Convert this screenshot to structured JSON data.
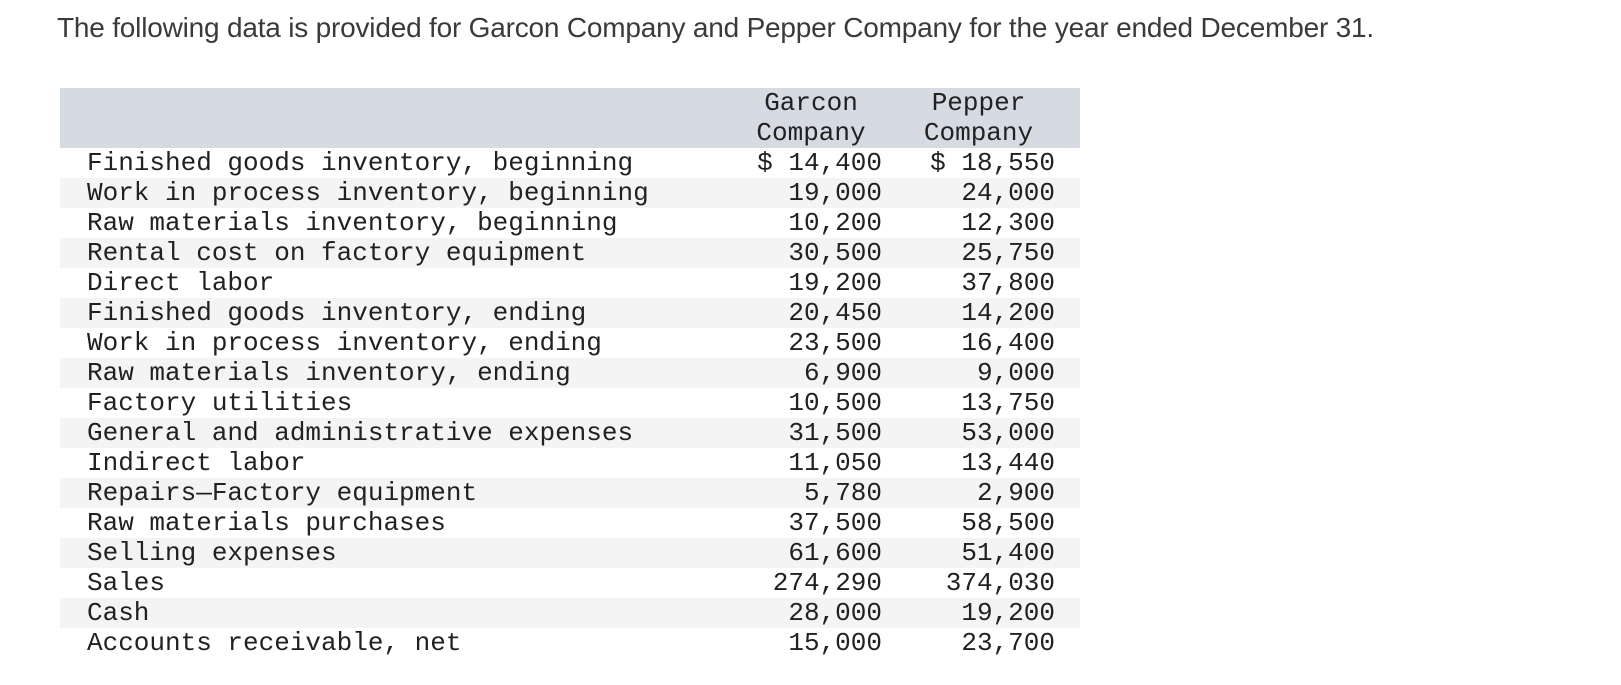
{
  "page": {
    "title": "The following data is provided for Garcon Company and Pepper Company for the year ended December 31."
  },
  "table": {
    "header": {
      "garcon": {
        "line1": "Garcon",
        "line2": "Company"
      },
      "pepper": {
        "line1": "Pepper",
        "line2": "Company"
      }
    },
    "rows": [
      {
        "label": "Finished goods inventory, beginning",
        "garcon": "$ 14,400",
        "pepper": "$ 18,550"
      },
      {
        "label": "Work in process inventory, beginning",
        "garcon": "19,000",
        "pepper": "24,000"
      },
      {
        "label": "Raw materials inventory, beginning",
        "garcon": "10,200",
        "pepper": "12,300"
      },
      {
        "label": "Rental cost on factory equipment",
        "garcon": "30,500",
        "pepper": "25,750"
      },
      {
        "label": "Direct labor",
        "garcon": "19,200",
        "pepper": "37,800"
      },
      {
        "label": "Finished goods inventory, ending",
        "garcon": "20,450",
        "pepper": "14,200"
      },
      {
        "label": "Work in process inventory, ending",
        "garcon": "23,500",
        "pepper": "16,400"
      },
      {
        "label": "Raw materials inventory, ending",
        "garcon": "6,900",
        "pepper": "9,000"
      },
      {
        "label": "Factory utilities",
        "garcon": "10,500",
        "pepper": "13,750"
      },
      {
        "label": "General and administrative expenses",
        "garcon": "31,500",
        "pepper": "53,000"
      },
      {
        "label": "Indirect labor",
        "garcon": "11,050",
        "pepper": "13,440"
      },
      {
        "label": "Repairs—Factory equipment",
        "garcon": "5,780",
        "pepper": "2,900"
      },
      {
        "label": "Raw materials purchases",
        "garcon": "37,500",
        "pepper": "58,500"
      },
      {
        "label": "Selling expenses",
        "garcon": "61,600",
        "pepper": "51,400"
      },
      {
        "label": "Sales",
        "garcon": "274,290",
        "pepper": "374,030"
      },
      {
        "label": "Cash",
        "garcon": "28,000",
        "pepper": "19,200"
      },
      {
        "label": "Accounts receivable, net",
        "garcon": "15,000",
        "pepper": "23,700"
      }
    ],
    "colors": {
      "header_bg": "#d6dae2",
      "stripe_bg": "#f4f4f5",
      "text": "#212121",
      "title_text": "#3a3a3a"
    }
  }
}
